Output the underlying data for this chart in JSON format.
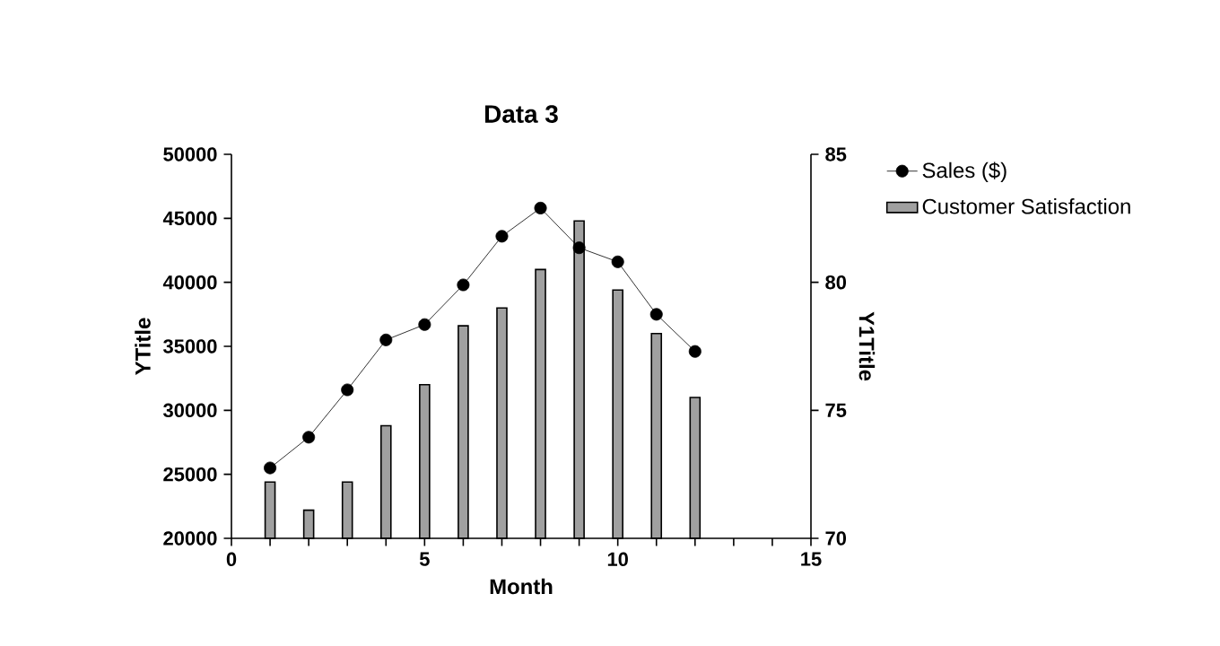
{
  "chart_data": {
    "type": "line",
    "title": "Data 3",
    "xlabel": "Month",
    "ylabel": "YTitle",
    "y2label": "Y1Title",
    "x": [
      1,
      2,
      3,
      4,
      5,
      6,
      7,
      8,
      9,
      10,
      11,
      12
    ],
    "series": [
      {
        "name": "Sales ($)",
        "color": "#000000",
        "values": [
          25500,
          27900,
          31600,
          35500,
          36700,
          39800,
          43600,
          45800,
          42700,
          41600,
          37500,
          34600
        ]
      },
      {
        "name": "Customer Satisfaction",
        "type": "bar",
        "axis": "y2",
        "color": "#a0a0a0",
        "values": [
          72.2,
          71.1,
          72.2,
          74.4,
          76.0,
          78.3,
          79.0,
          80.5,
          82.4,
          79.7,
          78.0,
          75.5
        ]
      }
    ],
    "xlim": [
      0,
      15
    ],
    "xticks": [
      0,
      {
        "value": 1,
        "label": null
      },
      {
        "value": 2,
        "label": null
      },
      {
        "value": 3,
        "label": null
      },
      {
        "value": 4,
        "label": null
      },
      5,
      {
        "value": 6,
        "label": null
      },
      {
        "value": 7,
        "label": null
      },
      {
        "value": 8,
        "label": null
      },
      {
        "value": 9,
        "label": null
      },
      10,
      {
        "value": 11,
        "label": null
      },
      {
        "value": 12,
        "label": null
      },
      {
        "value": 13,
        "label": null
      },
      {
        "value": 14,
        "label": null
      },
      15
    ],
    "ylim": [
      20000,
      50000
    ],
    "yticks": [
      20000,
      25000,
      30000,
      35000,
      40000,
      45000,
      50000
    ],
    "y2lim": [
      70,
      85
    ],
    "y2ticks": [
      70,
      75,
      80,
      85
    ],
    "marker": "circle",
    "legend": "top right"
  }
}
